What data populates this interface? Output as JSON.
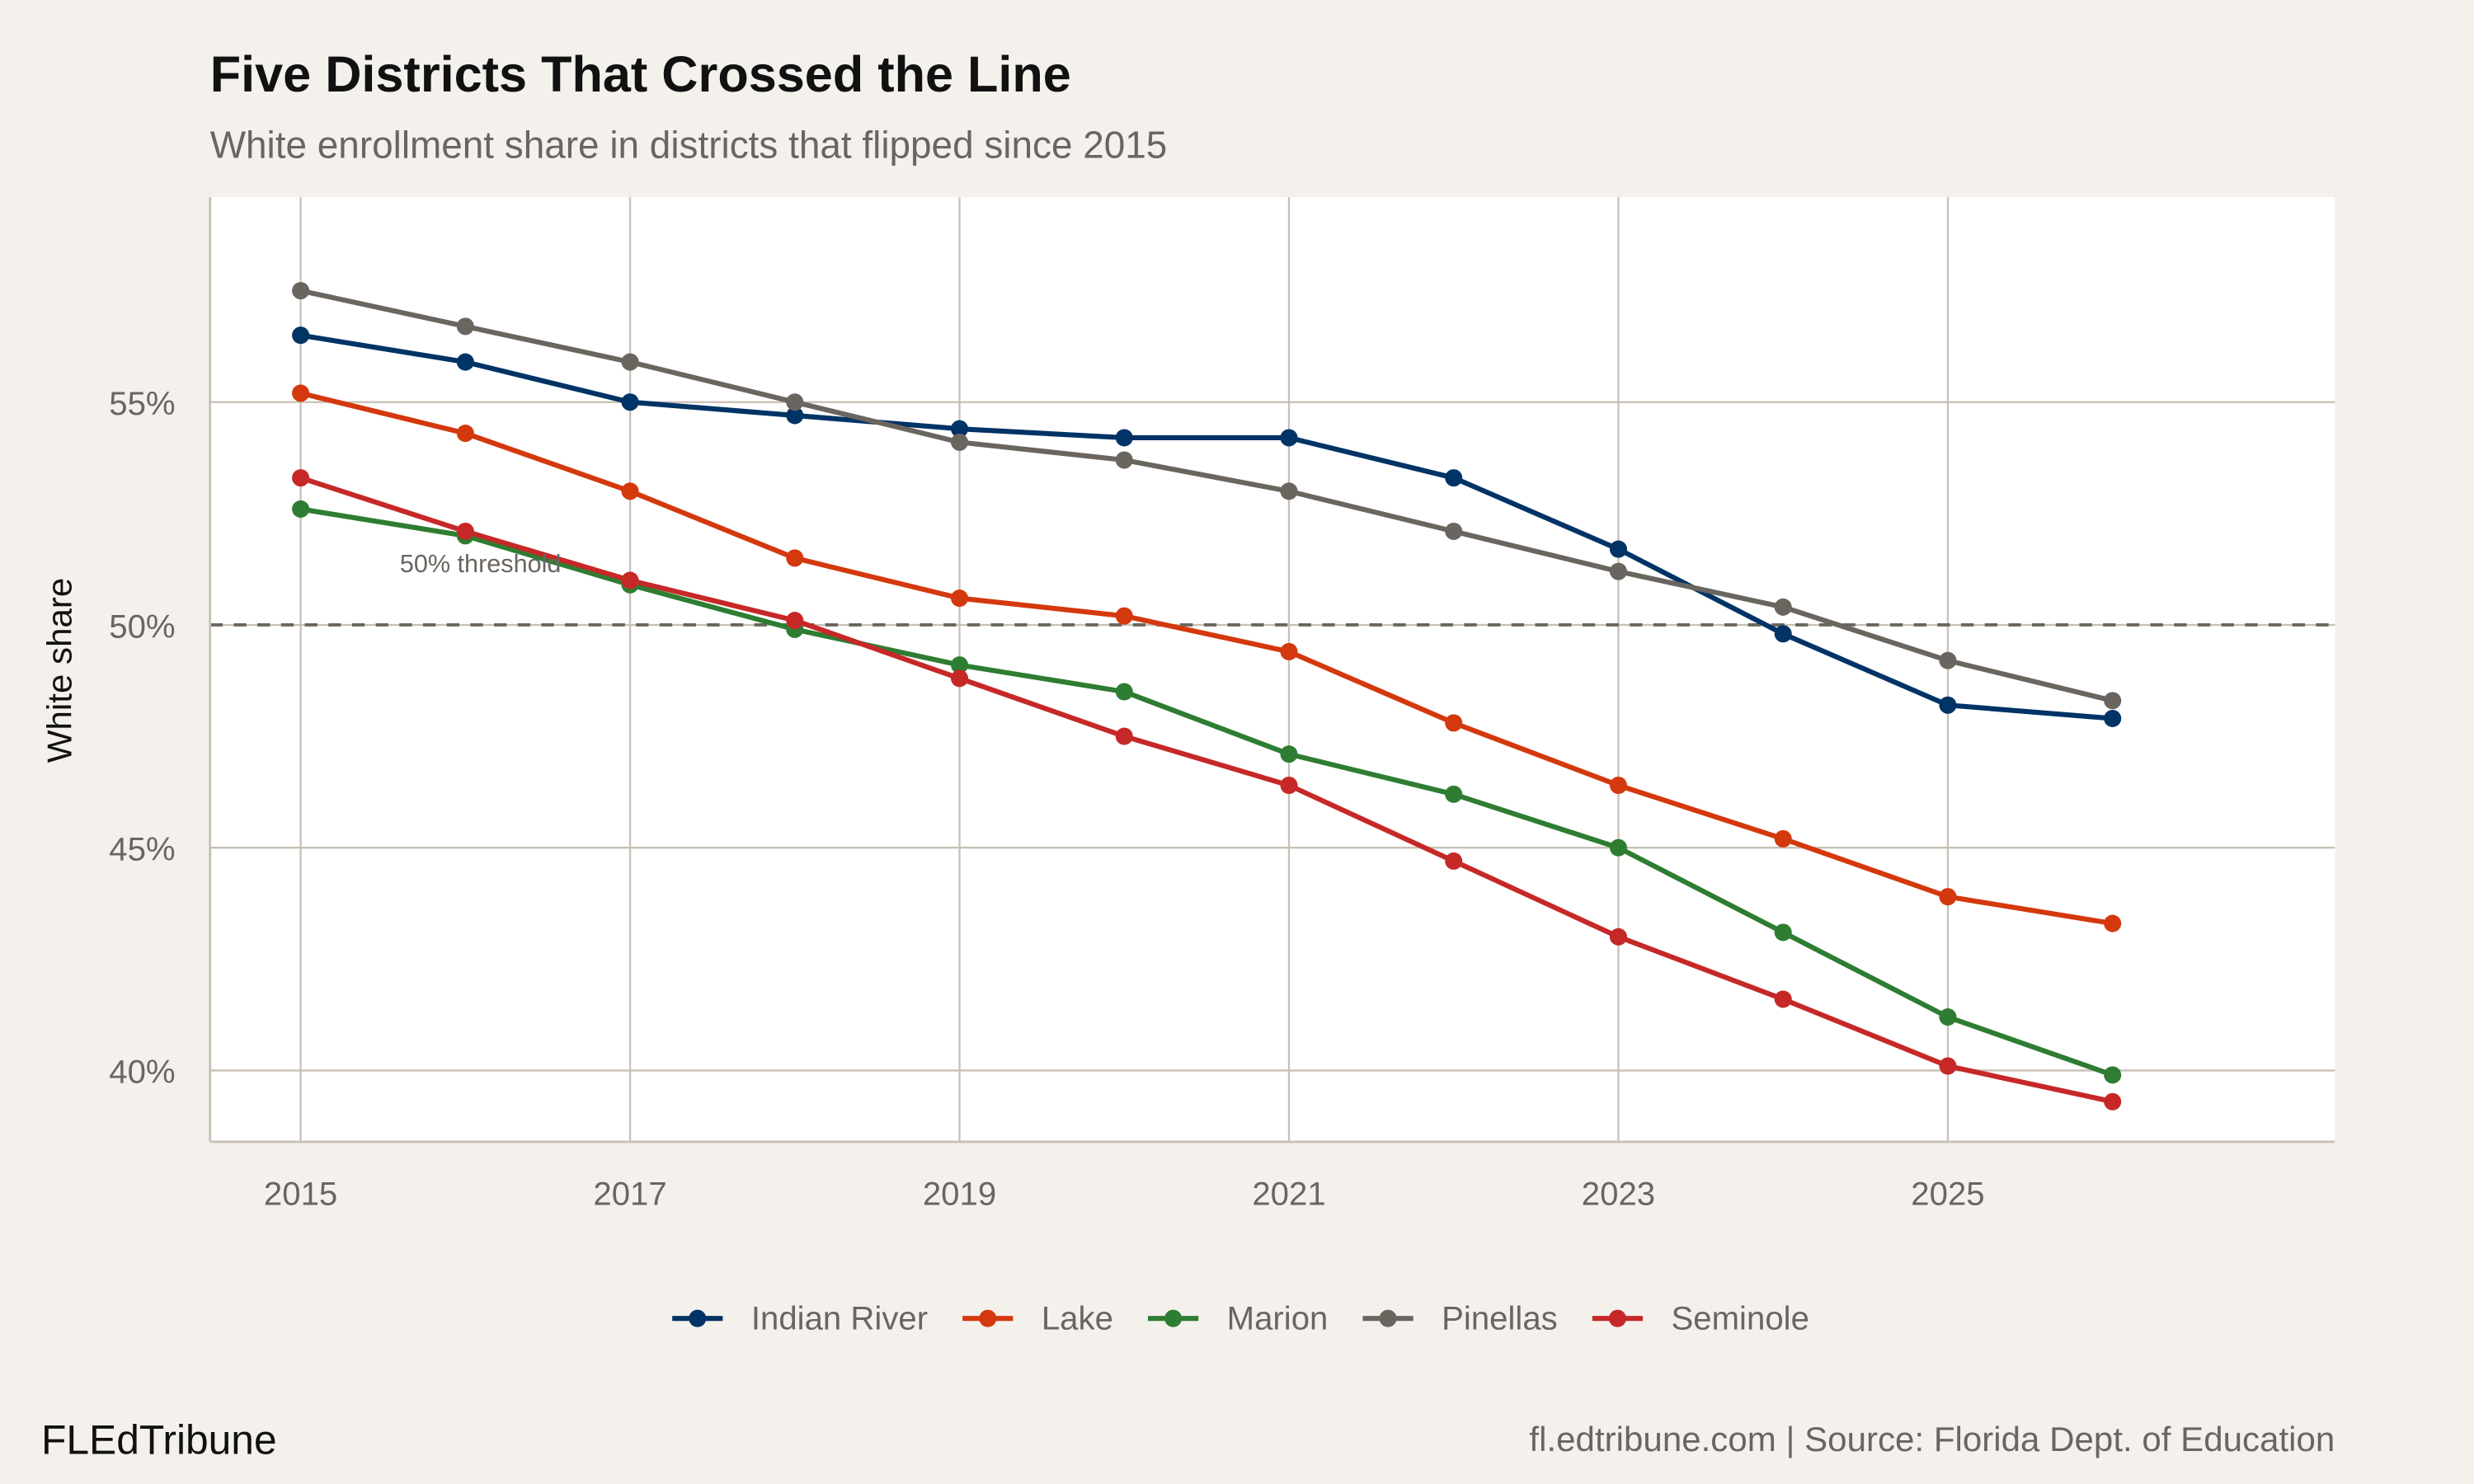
{
  "chart_data": {
    "type": "line",
    "title": "Five Districts That Crossed the Line",
    "subtitle": "White enrollment share in districts that flipped since 2015",
    "xlabel": "",
    "ylabel": "White share",
    "x": [
      2015,
      2016,
      2017,
      2018,
      2019,
      2020,
      2021,
      2022,
      2023,
      2024,
      2025,
      2026
    ],
    "x_ticks": [
      "2015",
      "2017",
      "2019",
      "2021",
      "2023",
      "2025"
    ],
    "y_ticks": [
      "40%",
      "45%",
      "50%",
      "55%"
    ],
    "y_tick_values": [
      40,
      45,
      50,
      55
    ],
    "xlim": [
      2014.45,
      2027.35
    ],
    "ylim": [
      38.4,
      59.6
    ],
    "grid": true,
    "legend_position": "bottom",
    "threshold": {
      "value": 50,
      "label": "50% threshold",
      "label_x": 2016.1,
      "label_y": 51.4
    },
    "series": [
      {
        "name": "Indian River",
        "color": "#003366",
        "values": [
          56.5,
          55.9,
          55.0,
          54.7,
          54.4,
          54.2,
          54.2,
          53.3,
          51.7,
          49.8,
          48.2,
          47.9
        ]
      },
      {
        "name": "Lake",
        "color": "#d4380d",
        "values": [
          55.2,
          54.3,
          53.0,
          51.5,
          50.6,
          50.2,
          49.4,
          47.8,
          46.4,
          45.2,
          43.9,
          43.3
        ]
      },
      {
        "name": "Marion",
        "color": "#2e7d32",
        "values": [
          52.6,
          52.0,
          50.9,
          49.9,
          49.1,
          48.5,
          47.1,
          46.2,
          45.0,
          43.1,
          41.2,
          39.9
        ]
      },
      {
        "name": "Pinellas",
        "color": "#6b6560",
        "values": [
          57.5,
          56.7,
          55.9,
          55.0,
          54.1,
          53.7,
          53.0,
          52.1,
          51.2,
          50.4,
          49.2,
          48.3
        ]
      },
      {
        "name": "Seminole",
        "color": "#c62828",
        "values": [
          53.3,
          52.1,
          51.0,
          50.1,
          48.8,
          47.5,
          46.4,
          44.7,
          43.0,
          41.6,
          40.1,
          39.3
        ]
      }
    ]
  },
  "footer": {
    "brand": "FLEdTribune",
    "source": "fl.edtribune.com | Source: Florida Dept. of Education"
  }
}
